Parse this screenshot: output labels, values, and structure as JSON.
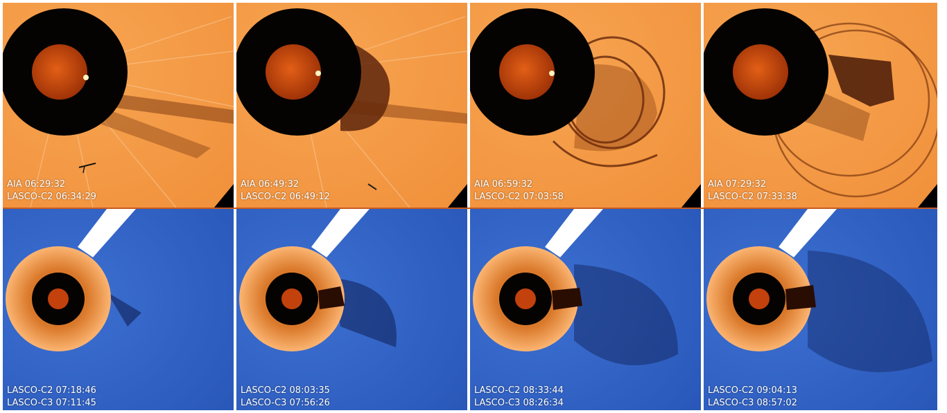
{
  "figure": {
    "top_row": [
      {
        "line1": "AIA 06:29:32",
        "line2": "LASCO-C2 06:34:29"
      },
      {
        "line1": "AIA 06:49:32",
        "line2": "LASCO-C2 06:49:12"
      },
      {
        "line1": "AIA 06:59:32",
        "line2": "LASCO-C2 07:03:58"
      },
      {
        "line1": "AIA 07:29:32",
        "line2": "LASCO-C2 07:33:38"
      }
    ],
    "bottom_row": [
      {
        "line1": "LASCO-C2 07:18:46",
        "line2": "LASCO-C3 07:11:45"
      },
      {
        "line1": "LASCO-C2 08:03:35",
        "line2": "LASCO-C3 07:56:26"
      },
      {
        "line1": "LASCO-C2 08:33:44",
        "line2": "LASCO-C3 08:26:34"
      },
      {
        "line1": "LASCO-C2 09:04:13",
        "line2": "LASCO-C3 08:57:02"
      }
    ],
    "colors": {
      "corona_orange": "#f39a45",
      "corona_blue": "#2e63c6",
      "occulter": "#050301",
      "sun": "#c2410c",
      "ejecta": "#5a1e05"
    }
  }
}
